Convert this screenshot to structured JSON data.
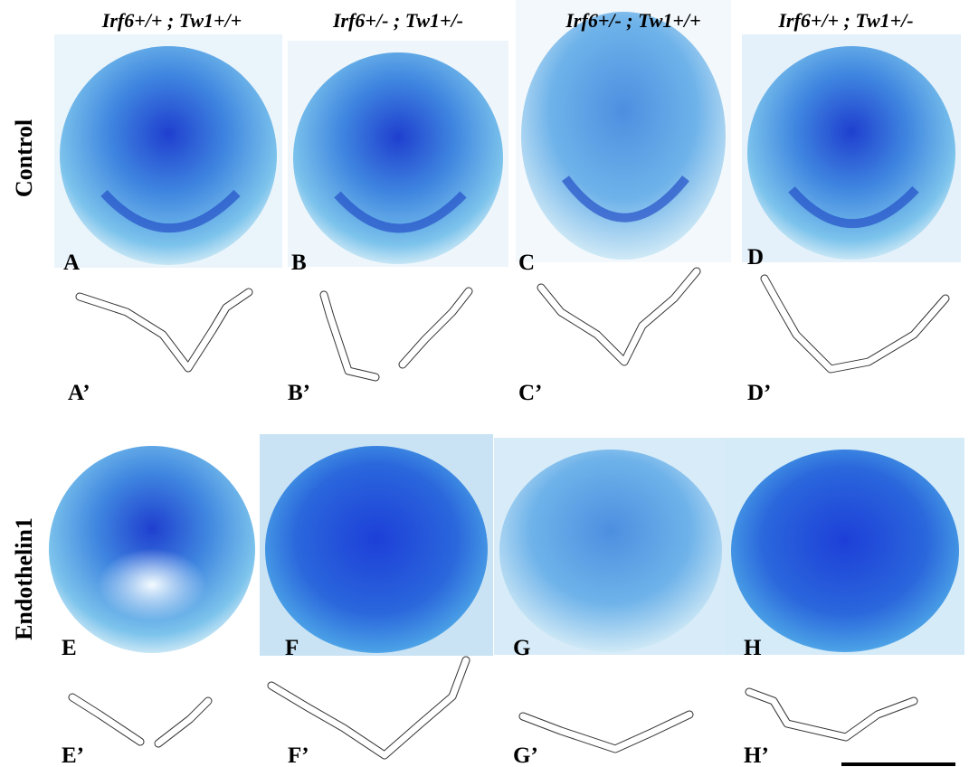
{
  "column_headers": [
    "Irf6+/+ ; Tw1+/+",
    "Irf6+/- ; Tw1+/-",
    "Irf6+/- ; Tw1+/+",
    "Irf6+/+ ; Tw1+/-"
  ],
  "row_labels": [
    "Control",
    "Endothelin1"
  ],
  "panels": [
    "A",
    "B",
    "C",
    "D",
    "E",
    "F",
    "G",
    "H"
  ],
  "outline_labels": [
    "A’",
    "B’",
    "C’",
    "D’",
    "E’",
    "F’",
    "G’",
    "H’"
  ]
}
